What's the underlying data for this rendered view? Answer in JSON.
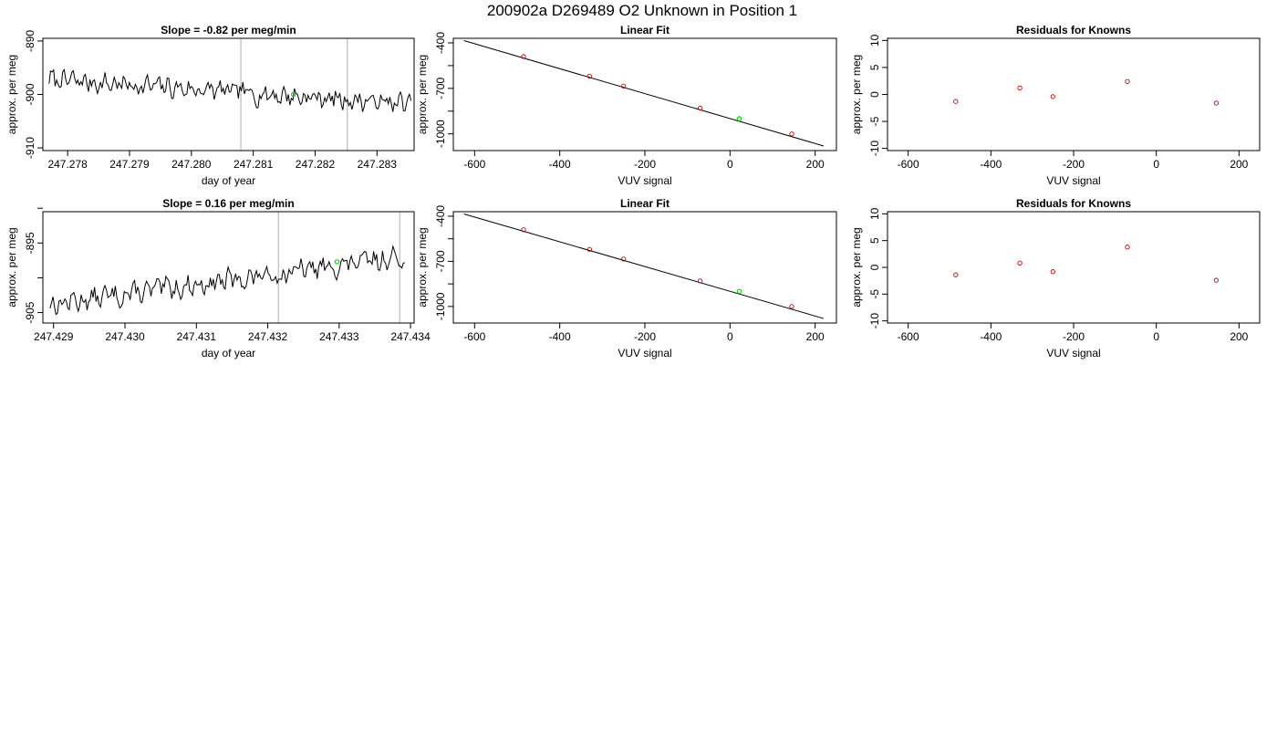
{
  "figure_title": "200902a     D269489   O2 Unknown in Position  1",
  "colors": {
    "known_point": "#cc0000",
    "unknown_point": "#00dd00",
    "line": "#000000",
    "marker_line": "#c8c8c8"
  },
  "chart_data": [
    {
      "type": "line",
      "title": "Slope =  -0.82  per meg/min",
      "xlabel": "day of year",
      "ylabel": "approx. per meg",
      "xlim": [
        247.2776,
        247.2836
      ],
      "ylim": [
        -910.5,
        -889.5
      ],
      "xticks": [
        {
          "value": 247.278,
          "label": "247.278"
        },
        {
          "value": 247.279,
          "label": "247.279"
        },
        {
          "value": 247.28,
          "label": "247.280"
        },
        {
          "value": 247.281,
          "label": "247.281"
        },
        {
          "value": 247.282,
          "label": "247.282"
        },
        {
          "value": 247.283,
          "label": "247.283"
        }
      ],
      "yticks": [
        {
          "value": -890,
          "label": "-890"
        },
        {
          "value": -900,
          "label": "-900"
        },
        {
          "value": -910,
          "label": "-910"
        }
      ],
      "vlines": [
        247.2808,
        247.28252
      ],
      "series_start": 247.2777,
      "series_end": 247.28355,
      "trend": {
        "start": -897.2,
        "end": -901.8,
        "noise": 2.3,
        "seed": 7
      },
      "unknown_point": {
        "x": 247.28165,
        "y": -900.0
      }
    },
    {
      "type": "scatter",
      "title": "Linear Fit",
      "xlabel": "VUV signal",
      "ylabel": "approx. per meg",
      "xlim": [
        -650,
        250
      ],
      "ylim": [
        -1110,
        -370
      ],
      "xticks": [
        {
          "value": -600,
          "label": "-600"
        },
        {
          "value": -400,
          "label": "-400"
        },
        {
          "value": -200,
          "label": "-200"
        },
        {
          "value": 0,
          "label": "0"
        },
        {
          "value": 200,
          "label": "200"
        }
      ],
      "yticks": [
        {
          "value": -400,
          "label": "-400"
        },
        {
          "value": -700,
          "label": "-700"
        },
        {
          "value": -1000,
          "label": "-1000"
        }
      ],
      "minor_yticks": [
        -550,
        -850
      ],
      "fit_line": {
        "x": [
          -625,
          220
        ],
        "y": [
          -385,
          -1080
        ]
      },
      "known_points": {
        "x": [
          -485,
          -330,
          -250,
          -70,
          145
        ],
        "y": [
          -490,
          -620,
          -685,
          -830,
          -1000
        ]
      },
      "unknown_point": {
        "x": 22,
        "y": -900
      }
    },
    {
      "type": "scatter",
      "title": "Residuals for Knowns",
      "xlabel": "VUV signal",
      "ylabel": "approx. per meg",
      "xlim": [
        -650,
        250
      ],
      "ylim": [
        -10.4,
        10.4
      ],
      "xticks": [
        {
          "value": -600,
          "label": "-600"
        },
        {
          "value": -400,
          "label": "-400"
        },
        {
          "value": -200,
          "label": "-200"
        },
        {
          "value": 0,
          "label": "0"
        },
        {
          "value": 200,
          "label": "200"
        }
      ],
      "yticks": [
        {
          "value": 10,
          "label": "10"
        },
        {
          "value": 5,
          "label": "5"
        },
        {
          "value": 0,
          "label": "0"
        },
        {
          "value": -5,
          "label": "-5"
        },
        {
          "value": -10,
          "label": "-10"
        }
      ],
      "known_points": {
        "x": [
          -485,
          -330,
          -250,
          -70,
          145
        ],
        "y": [
          -1.3,
          1.2,
          -0.4,
          2.4,
          -1.6
        ]
      }
    },
    {
      "type": "line",
      "title": "Slope =  0.16  per meg/min",
      "xlabel": "day of year",
      "ylabel": "approx. per meg",
      "xlim": [
        247.42885,
        247.43405
      ],
      "ylim": [
        -906.5,
        -890.5
      ],
      "xticks": [
        {
          "value": 247.429,
          "label": "247.429"
        },
        {
          "value": 247.43,
          "label": "247.430"
        },
        {
          "value": 247.431,
          "label": "247.431"
        },
        {
          "value": 247.432,
          "label": "247.432"
        },
        {
          "value": 247.433,
          "label": "247.433"
        },
        {
          "value": 247.434,
          "label": "247.434"
        }
      ],
      "yticks": [
        {
          "value": -895,
          "label": "-895"
        },
        {
          "value": -905,
          "label": "-905"
        }
      ],
      "minor_yticks": [
        -890,
        -900
      ],
      "vlines": [
        247.43215,
        247.43385
      ],
      "series_start": 247.42895,
      "series_end": 247.43392,
      "trend": {
        "start": -903.8,
        "end": -897.0,
        "noise": 1.8,
        "seed": 13
      },
      "unknown_point": {
        "x": 247.43297,
        "y": -897.7
      }
    },
    {
      "type": "scatter",
      "title": "Linear Fit",
      "xlabel": "VUV signal",
      "ylabel": "approx. per meg",
      "xlim": [
        -650,
        250
      ],
      "ylim": [
        -1110,
        -370
      ],
      "xticks": [
        {
          "value": -600,
          "label": "-600"
        },
        {
          "value": -400,
          "label": "-400"
        },
        {
          "value": -200,
          "label": "-200"
        },
        {
          "value": 0,
          "label": "0"
        },
        {
          "value": 200,
          "label": "200"
        }
      ],
      "yticks": [
        {
          "value": -400,
          "label": "-400"
        },
        {
          "value": -700,
          "label": "-700"
        },
        {
          "value": -1000,
          "label": "-1000"
        }
      ],
      "minor_yticks": [
        -550,
        -850
      ],
      "fit_line": {
        "x": [
          -625,
          220
        ],
        "y": [
          -385,
          -1080
        ]
      },
      "known_points": {
        "x": [
          -485,
          -330,
          -250,
          -70,
          145
        ],
        "y": [
          -490,
          -620,
          -685,
          -830,
          -1000
        ]
      },
      "unknown_point": {
        "x": 22,
        "y": -900
      }
    },
    {
      "type": "scatter",
      "title": "Residuals for Knowns",
      "xlabel": "VUV signal",
      "ylabel": "approx. per meg",
      "xlim": [
        -650,
        250
      ],
      "ylim": [
        -10.4,
        10.4
      ],
      "xticks": [
        {
          "value": -600,
          "label": "-600"
        },
        {
          "value": -400,
          "label": "-400"
        },
        {
          "value": -200,
          "label": "-200"
        },
        {
          "value": 0,
          "label": "0"
        },
        {
          "value": 200,
          "label": "200"
        }
      ],
      "yticks": [
        {
          "value": 10,
          "label": "10"
        },
        {
          "value": 5,
          "label": "5"
        },
        {
          "value": 0,
          "label": "0"
        },
        {
          "value": -5,
          "label": "-5"
        },
        {
          "value": -10,
          "label": "-10"
        }
      ],
      "known_points": {
        "x": [
          -485,
          -330,
          -250,
          -70,
          145
        ],
        "y": [
          -1.4,
          0.8,
          -0.8,
          3.8,
          -2.4
        ]
      }
    }
  ]
}
